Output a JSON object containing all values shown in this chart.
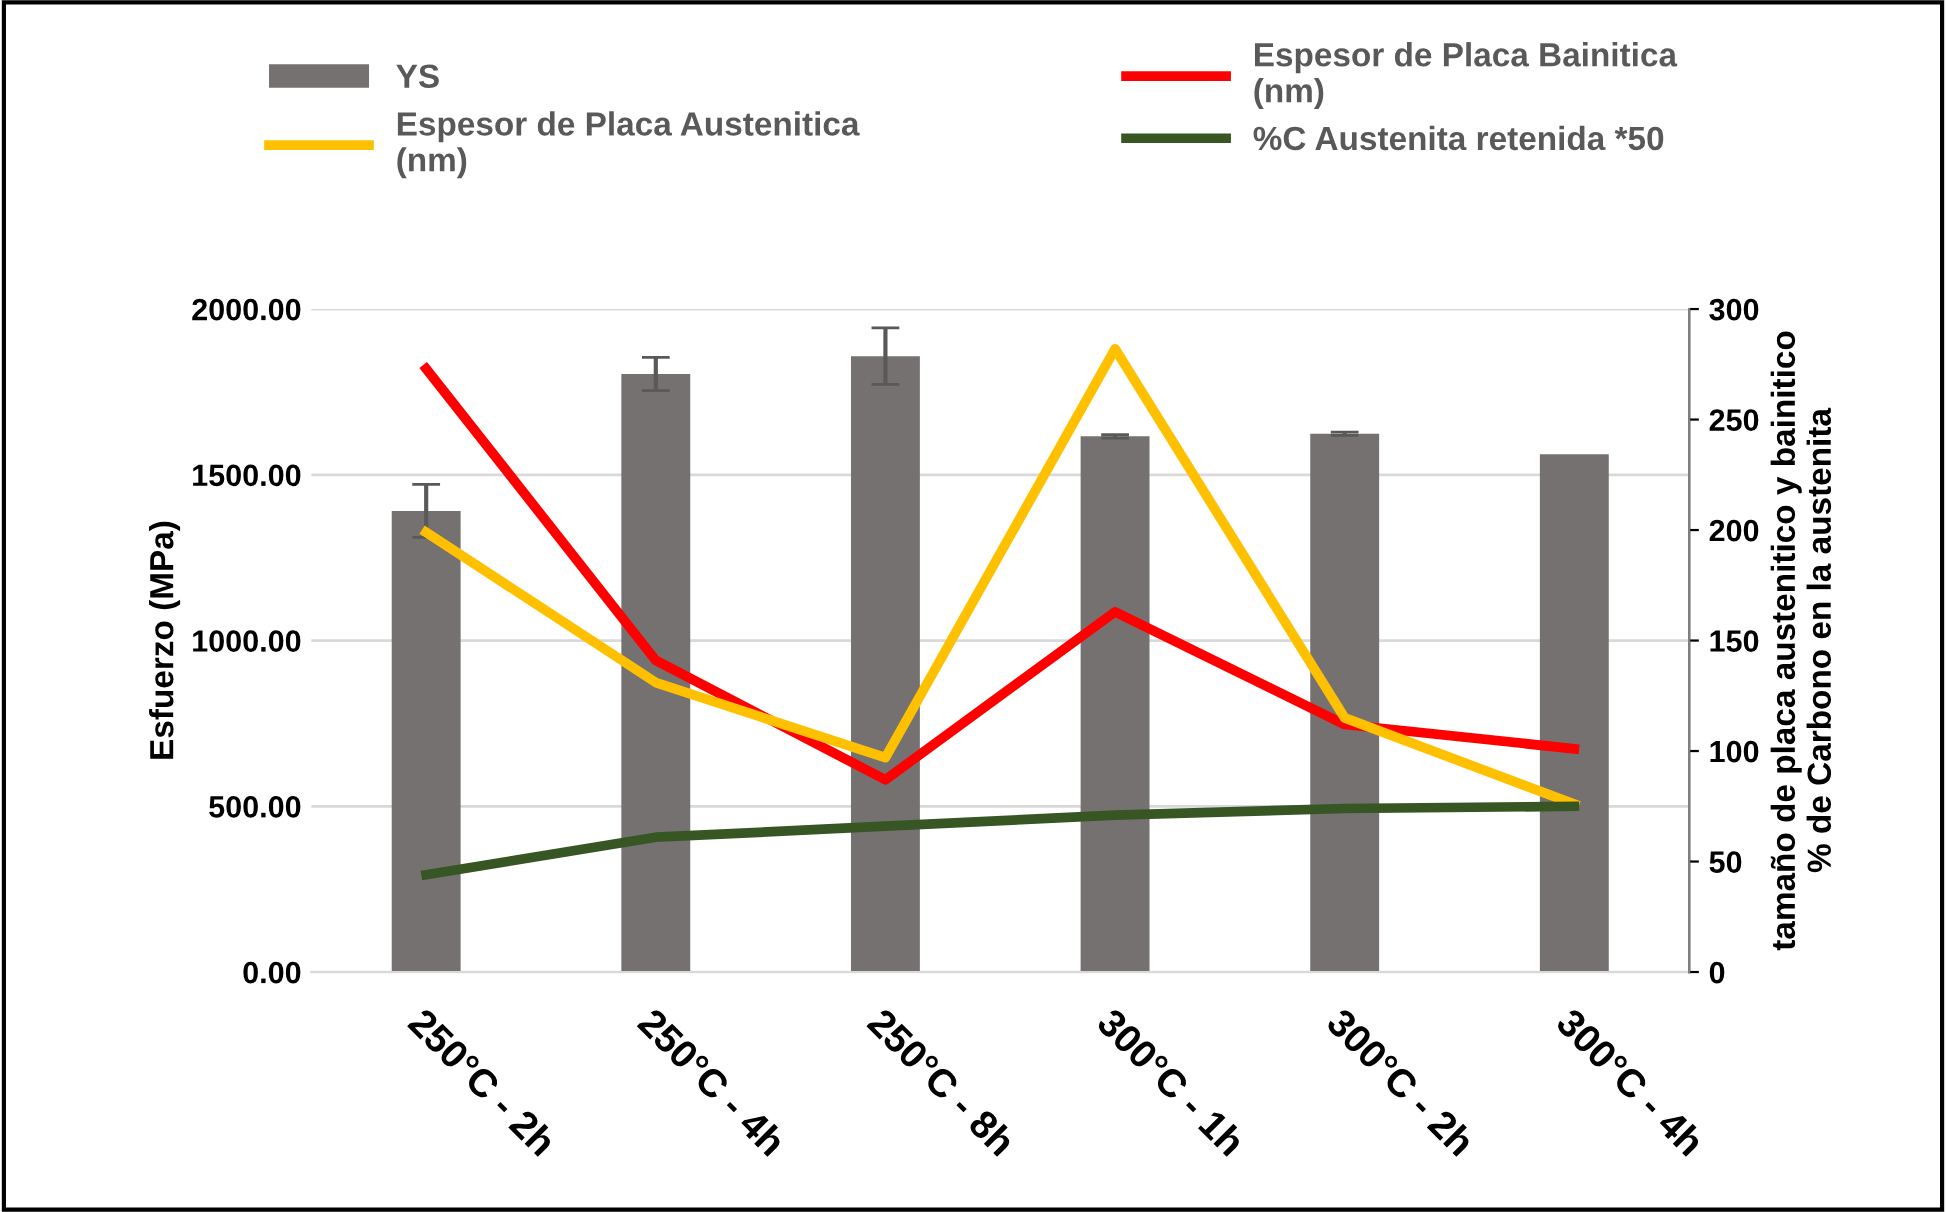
{
  "chart_data": {
    "type": "bar",
    "categories": [
      "250°C - 2h",
      "250°C - 4h",
      "250°C - 8h",
      "300°C - 1h",
      "300°C - 2h",
      "300°C - 4h"
    ],
    "series": [
      {
        "name": "YS",
        "color": "#767171",
        "values": [
          1391,
          1804,
          1858,
          1616,
          1624,
          1562
        ],
        "errors": [
          80,
          50,
          85,
          5,
          5,
          null
        ]
      },
      {
        "name": "Espesor de Placa Bainitica (nm)",
        "type": "line",
        "axis": "y2",
        "color": "#ff0000",
        "values": [
          273,
          141,
          87,
          163,
          112,
          101
        ]
      },
      {
        "name": "Espesor de Placa Austenitica (nm)",
        "type": "line",
        "axis": "y2",
        "color": "#ffc000",
        "values": [
          199,
          131,
          97,
          282,
          115,
          76
        ]
      },
      {
        "name": "%C Austenita retenida *50",
        "type": "line",
        "axis": "y2",
        "color": "#375623",
        "values": [
          44,
          61,
          66,
          71,
          74,
          75
        ]
      }
    ],
    "ylabel": "Esfuerzo (MPa)",
    "y2label": "tamaño de placa austenitico y bainitico\n% de Carbono en la austenita",
    "ylim": [
      0,
      2000
    ],
    "yticks": [
      {
        "value": 0,
        "label": "0.00"
      },
      {
        "value": 500,
        "label": "500.00"
      },
      {
        "value": 1000,
        "label": "1000.00"
      },
      {
        "value": 1500,
        "label": "1500.00"
      },
      {
        "value": 2000,
        "label": "2000.00"
      }
    ],
    "y2lim": [
      0,
      300
    ],
    "y2ticks": [
      0,
      50,
      100,
      150,
      200,
      250,
      300
    ],
    "grid": "y",
    "legend": "top",
    "line_style": "solid",
    "marker": "none"
  }
}
